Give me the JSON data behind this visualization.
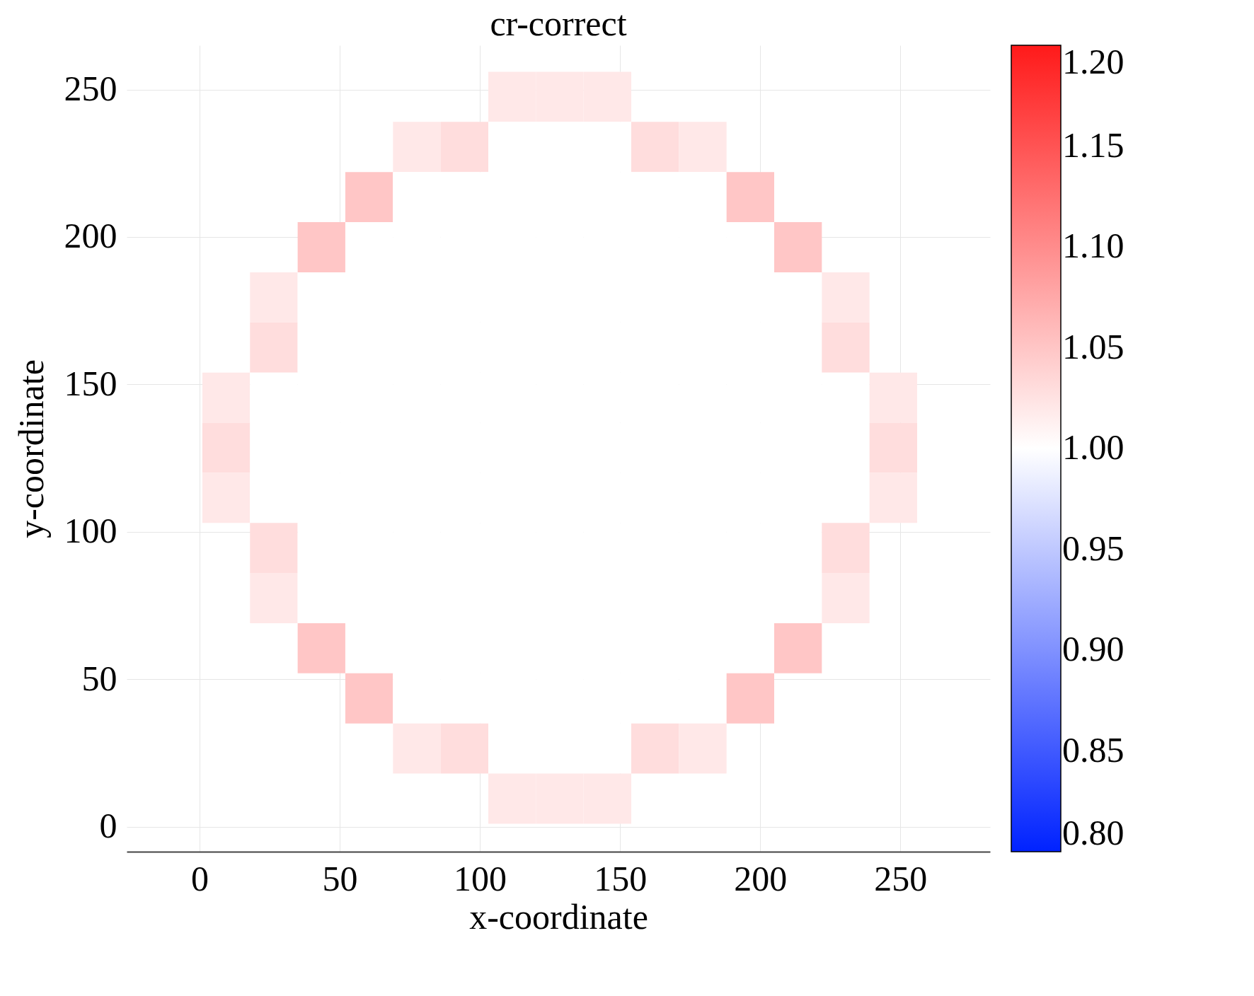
{
  "chart_data": {
    "type": "heatmap",
    "title": "cr-correct",
    "xlabel": "x-coordinate",
    "ylabel": "y-coordinate",
    "x": [
      9.5,
      26.5,
      43.5,
      60.5,
      77.5,
      94.5,
      111.5,
      128.5,
      145.5,
      162.5,
      179.5,
      196.5,
      213.5,
      230.5,
      247.5
    ],
    "y": [
      247.5,
      230.5,
      213.5,
      196.5,
      179.5,
      162.5,
      145.5,
      128.5,
      111.5,
      94.5,
      77.5,
      60.5,
      43.5,
      26.5,
      9.5
    ],
    "cells": [
      [
        null,
        null,
        null,
        null,
        null,
        null,
        1.02,
        1.02,
        1.02,
        null,
        null,
        null,
        null,
        null,
        null
      ],
      [
        null,
        null,
        null,
        null,
        1.02,
        1.03,
        1.0,
        1.0,
        1.0,
        1.03,
        1.02,
        null,
        null,
        null,
        null
      ],
      [
        null,
        null,
        null,
        1.05,
        1.0,
        1.0,
        1.0,
        1.0,
        1.0,
        1.0,
        1.0,
        1.05,
        null,
        null,
        null
      ],
      [
        null,
        null,
        1.05,
        1.0,
        1.0,
        1.0,
        1.0,
        1.0,
        1.0,
        1.0,
        1.0,
        1.0,
        1.05,
        null,
        null
      ],
      [
        null,
        1.02,
        1.0,
        1.0,
        1.0,
        1.0,
        1.0,
        1.0,
        1.0,
        1.0,
        1.0,
        1.0,
        1.0,
        1.02,
        null
      ],
      [
        null,
        1.03,
        1.0,
        1.0,
        1.0,
        1.0,
        1.0,
        1.0,
        1.0,
        1.0,
        1.0,
        1.0,
        1.0,
        1.03,
        null
      ],
      [
        1.02,
        1.0,
        1.0,
        1.0,
        1.0,
        1.0,
        1.0,
        1.0,
        1.0,
        1.0,
        1.0,
        1.0,
        1.0,
        1.0,
        1.02
      ],
      [
        1.03,
        1.0,
        1.0,
        1.0,
        1.0,
        1.0,
        1.0,
        1.0,
        1.0,
        1.0,
        1.0,
        1.0,
        1.0,
        1.0,
        1.03
      ],
      [
        1.02,
        1.0,
        1.0,
        1.0,
        1.0,
        1.0,
        1.0,
        1.0,
        1.0,
        1.0,
        1.0,
        1.0,
        1.0,
        1.0,
        1.02
      ],
      [
        null,
        1.03,
        1.0,
        1.0,
        1.0,
        1.0,
        1.0,
        1.0,
        1.0,
        1.0,
        1.0,
        1.0,
        1.0,
        1.03,
        null
      ],
      [
        null,
        1.02,
        1.0,
        1.0,
        1.0,
        1.0,
        1.0,
        1.0,
        1.0,
        1.0,
        1.0,
        1.0,
        1.0,
        1.02,
        null
      ],
      [
        null,
        null,
        1.05,
        1.0,
        1.0,
        1.0,
        1.0,
        1.0,
        1.0,
        1.0,
        1.0,
        1.0,
        1.05,
        null,
        null
      ],
      [
        null,
        null,
        null,
        1.05,
        1.0,
        1.0,
        1.0,
        1.0,
        1.0,
        1.0,
        1.0,
        1.05,
        null,
        null,
        null
      ],
      [
        null,
        null,
        null,
        null,
        1.02,
        1.03,
        1.0,
        1.0,
        1.0,
        1.03,
        1.02,
        null,
        null,
        null,
        null
      ],
      [
        null,
        null,
        null,
        null,
        null,
        null,
        1.02,
        1.02,
        1.02,
        null,
        null,
        null,
        null,
        null,
        null
      ]
    ],
    "xlim": [
      -26,
      282
    ],
    "xticks": [
      0,
      50,
      100,
      150,
      200,
      250
    ],
    "ylim": [
      -8.5,
      265
    ],
    "yticks": [
      0,
      50,
      100,
      150,
      200,
      250
    ],
    "clim": [
      0.8,
      1.2
    ],
    "cticks": [
      {
        "value": 0.8,
        "label": "0.80"
      },
      {
        "value": 0.85,
        "label": "0.85"
      },
      {
        "value": 0.9,
        "label": "0.90"
      },
      {
        "value": 0.95,
        "label": "0.95"
      },
      {
        "value": 1.0,
        "label": "1.00"
      },
      {
        "value": 1.05,
        "label": "1.05"
      },
      {
        "value": 1.1,
        "label": "1.10"
      },
      {
        "value": 1.15,
        "label": "1.15"
      },
      {
        "value": 1.2,
        "label": "1.20"
      }
    ],
    "grid": true
  }
}
